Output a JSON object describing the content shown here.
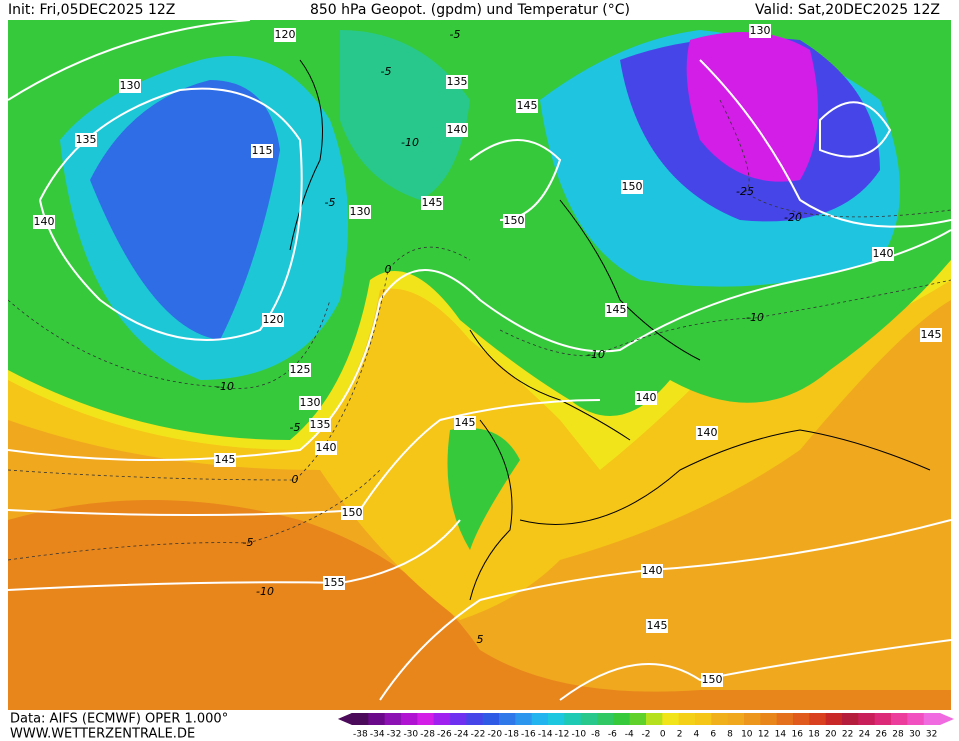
{
  "header": {
    "init": "Init: Fri,05DEC2025 12Z",
    "title": "850 hPa Geopot. (gpdm) und Temperatur (°C)",
    "valid": "Valid: Sat,20DEC2025 12Z"
  },
  "footer": {
    "source": "Data: AIFS (ECMWF) OPER 1.000°",
    "site": "WWW.WETTERZENTRALE.DE"
  },
  "colorbar": {
    "labels": [
      -38,
      -34,
      -32,
      -30,
      -28,
      -26,
      -24,
      -22,
      -20,
      -18,
      -16,
      -14,
      -12,
      -10,
      -8,
      -6,
      -4,
      -2,
      0,
      2,
      4,
      6,
      8,
      10,
      12,
      14,
      16,
      18,
      20,
      22,
      24,
      26,
      28,
      30,
      32
    ]
  },
  "geopotential_labels": [
    120,
    130,
    135,
    140,
    115,
    135,
    145,
    140,
    130,
    145,
    150,
    150,
    130,
    140,
    145,
    145,
    120,
    125,
    130,
    135,
    140,
    145,
    145,
    140,
    140,
    150,
    155,
    140,
    145,
    150
  ],
  "temperature_labels": [
    -5,
    -5,
    -10,
    -5,
    0,
    -10,
    -5,
    0,
    -5,
    -10,
    5,
    -25,
    -20,
    -10,
    -10
  ]
}
